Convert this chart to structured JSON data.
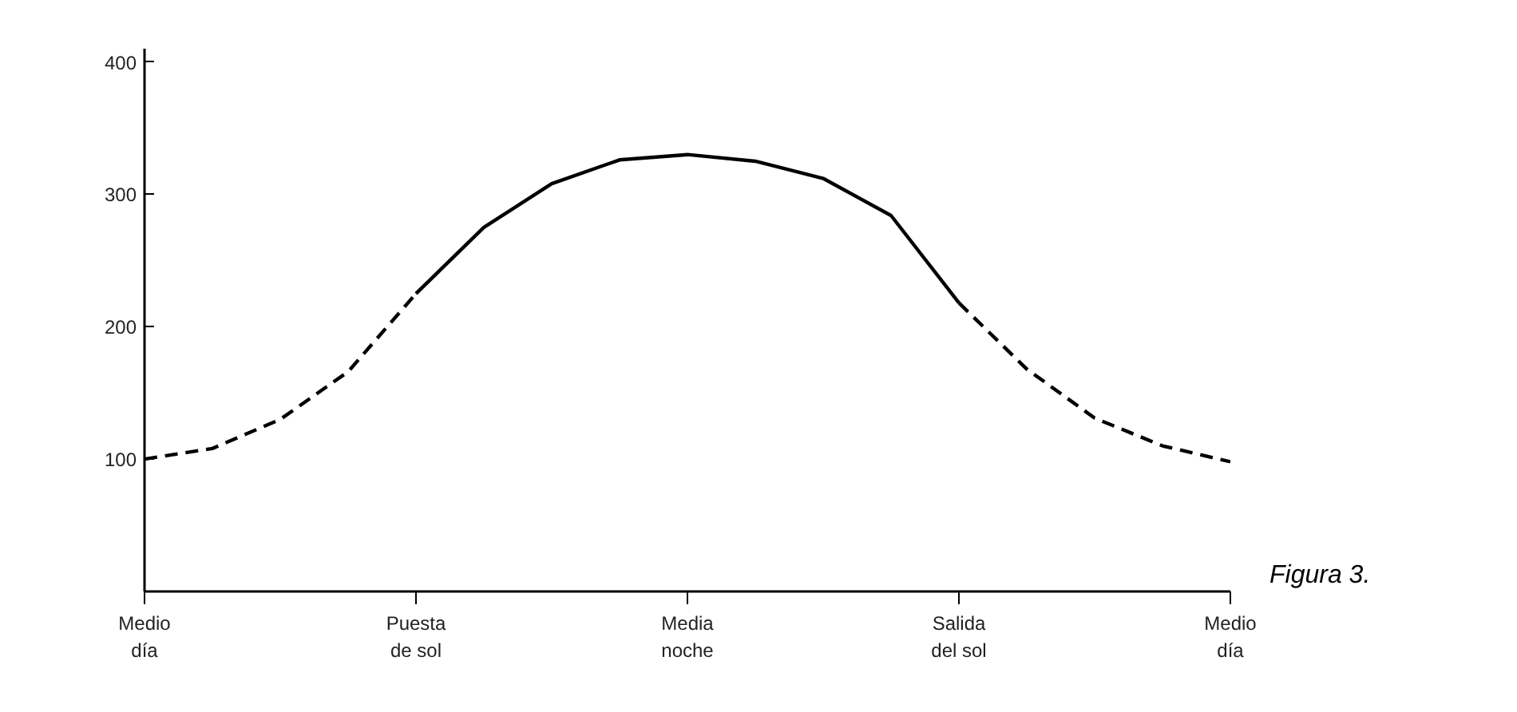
{
  "chart_data": {
    "type": "line",
    "categories": [
      "Medio\ndía",
      null,
      null,
      null,
      "Puesta\nde sol",
      null,
      null,
      null,
      "Media\nnoche",
      null,
      null,
      null,
      "Salida\ndel sol",
      null,
      null,
      null,
      "Medio\ndía"
    ],
    "ylim": [
      0,
      410
    ],
    "yticks": [
      100,
      200,
      300,
      400
    ],
    "series": [
      {
        "color": "#000000",
        "line_style": "dashed",
        "values": [
          100,
          108,
          130,
          166,
          225,
          null,
          null,
          null,
          null,
          null,
          null,
          null,
          null,
          null,
          null,
          null,
          null
        ]
      },
      {
        "color": "#000000",
        "line_style": "solid",
        "values": [
          null,
          null,
          null,
          null,
          225,
          275,
          308,
          326,
          330,
          325,
          312,
          284,
          218,
          null,
          null,
          null,
          null
        ]
      },
      {
        "color": "#000000",
        "line_style": "dashed",
        "values": [
          null,
          null,
          null,
          null,
          null,
          null,
          null,
          null,
          null,
          null,
          null,
          null,
          218,
          168,
          131,
          110,
          98
        ]
      }
    ],
    "grid": false,
    "annotations": [
      "Figura 3."
    ]
  }
}
